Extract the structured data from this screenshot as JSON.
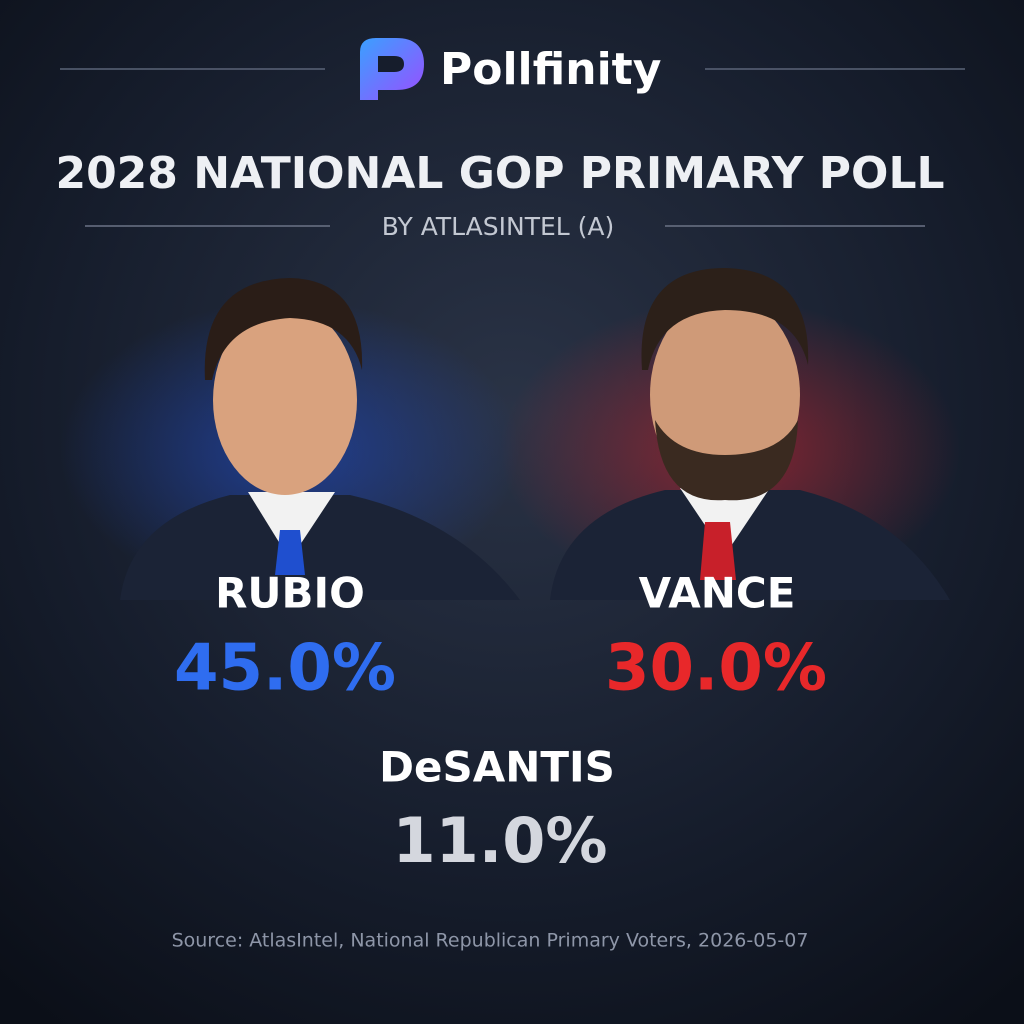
{
  "brand": "Pollfinity",
  "title": "2028 NATIONAL GOP PRIMARY POLL",
  "subtitle": "BY ATLASINTEL (A)",
  "candidates": [
    {
      "name": "RUBIO",
      "percent": "45.0%"
    },
    {
      "name": "VANCE",
      "percent": "30.0%"
    },
    {
      "name": "DeSANTIS",
      "percent": "11.0%"
    }
  ],
  "source": "Source: AtlasIntel, National Republican Primary Voters, 2026-05-07"
}
